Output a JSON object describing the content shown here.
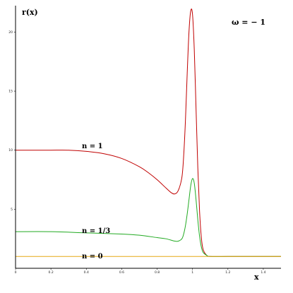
{
  "chart_data": {
    "type": "line",
    "xlabel": "x",
    "ylabel": "r(x)",
    "annotation": "ω = − 1",
    "xlim": [
      0,
      1.5
    ],
    "ylim": [
      0,
      22
    ],
    "xticks": [
      {
        "value": 0,
        "label": "0"
      },
      {
        "value": 0.2,
        "label": "0.2"
      },
      {
        "value": 0.4,
        "label": "0.4"
      },
      {
        "value": 0.6,
        "label": "0.6"
      },
      {
        "value": 0.8,
        "label": "0.8"
      },
      {
        "value": 1.0,
        "label": "1"
      },
      {
        "value": 1.2,
        "label": "1.2"
      },
      {
        "value": 1.4,
        "label": "1.4"
      }
    ],
    "yticks": [
      {
        "value": 5,
        "label": "5"
      },
      {
        "value": 10,
        "label": "10"
      },
      {
        "value": 15,
        "label": "15"
      },
      {
        "value": 20,
        "label": "20"
      }
    ],
    "grid": false,
    "series": [
      {
        "name": "n = 1",
        "color": "#c00000",
        "x": [
          0,
          0.1,
          0.2,
          0.3,
          0.4,
          0.5,
          0.6,
          0.7,
          0.75,
          0.8,
          0.85,
          0.88,
          0.9,
          0.92,
          0.94,
          0.95,
          0.96,
          0.97,
          0.98,
          0.99,
          1.0,
          1.01,
          1.02,
          1.03,
          1.04,
          1.05,
          1.06,
          1.08,
          1.1,
          1.2,
          1.3,
          1.4,
          1.5
        ],
        "y": [
          10,
          10,
          10,
          10,
          9.9,
          9.7,
          9.3,
          8.6,
          8.1,
          7.5,
          6.8,
          6.4,
          6.3,
          6.6,
          7.7,
          9.5,
          12.5,
          16.5,
          20.0,
          21.8,
          21.5,
          18.5,
          13.5,
          8.5,
          4.8,
          2.6,
          1.6,
          1.1,
          1.0,
          1.0,
          1.0,
          1.0,
          1.0
        ]
      },
      {
        "name": "n = 1/3",
        "color": "#22aa22",
        "x": [
          0,
          0.2,
          0.4,
          0.6,
          0.7,
          0.8,
          0.85,
          0.9,
          0.92,
          0.94,
          0.95,
          0.96,
          0.97,
          0.98,
          0.99,
          1.0,
          1.01,
          1.02,
          1.03,
          1.04,
          1.05,
          1.06,
          1.08,
          1.1,
          1.2,
          1.3,
          1.4,
          1.5
        ],
        "y": [
          3.1,
          3.1,
          3.0,
          2.9,
          2.8,
          2.6,
          2.5,
          2.3,
          2.3,
          2.5,
          2.9,
          3.6,
          4.6,
          5.8,
          7.0,
          7.6,
          7.2,
          5.8,
          4.1,
          2.7,
          1.8,
          1.35,
          1.1,
          1.0,
          1.0,
          1.0,
          1.0,
          1.0
        ]
      },
      {
        "name": "n = 0",
        "color": "#e6a817",
        "x": [
          0,
          1.5
        ],
        "y": [
          1.0,
          1.0
        ]
      }
    ]
  }
}
